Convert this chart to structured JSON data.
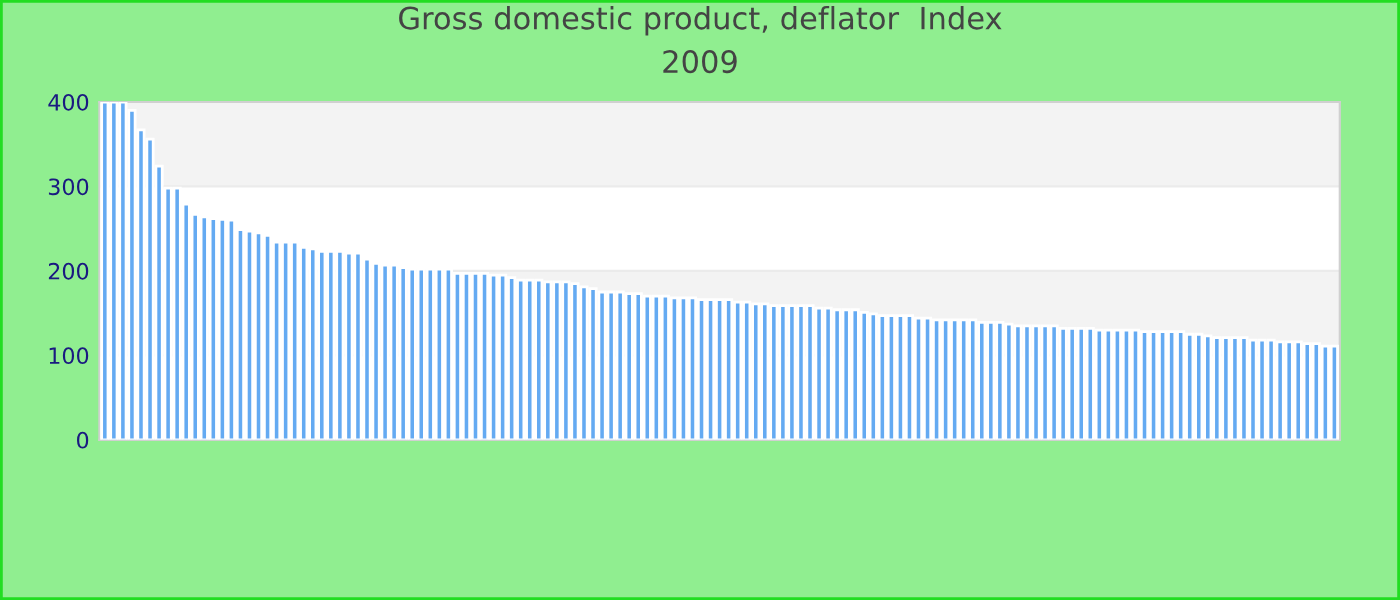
{
  "chart_data": {
    "type": "bar",
    "title": "Gross domestic product, deflator  Index\n2009",
    "categories": [
      null,
      null,
      null,
      null,
      null,
      null,
      null,
      null,
      null,
      null,
      null,
      null,
      null,
      null,
      null,
      null,
      null,
      null,
      null,
      null,
      null,
      null,
      null,
      null,
      null,
      null,
      null,
      null,
      null,
      null,
      null,
      null,
      null,
      null,
      null,
      null,
      null,
      null,
      null,
      null,
      null,
      null,
      null,
      null,
      null,
      null,
      null,
      null,
      null,
      null,
      null,
      null,
      null,
      null,
      null,
      null,
      null,
      null,
      null,
      null,
      null,
      null,
      null,
      null,
      null,
      null,
      null,
      null,
      null,
      null,
      null,
      null,
      null,
      null,
      null,
      null,
      null,
      null,
      null,
      null,
      null,
      null,
      null,
      null,
      null,
      null,
      null,
      null,
      null,
      null,
      null,
      null,
      null,
      null,
      null,
      null,
      null,
      null,
      null,
      null,
      null,
      null,
      null,
      null,
      null,
      null,
      null,
      null,
      null,
      null,
      null,
      null,
      null,
      null,
      null,
      null,
      null,
      null,
      null,
      null,
      null,
      null,
      null,
      null,
      null,
      null,
      null,
      null,
      null,
      null,
      null,
      null,
      null,
      null,
      null,
      null,
      null
    ],
    "values": [
      400,
      400,
      400,
      390,
      367,
      356,
      324,
      298,
      298,
      279,
      267,
      264,
      262,
      261,
      260,
      249,
      247,
      245,
      242,
      234,
      234,
      234,
      228,
      226,
      223,
      223,
      223,
      221,
      221,
      214,
      209,
      207,
      207,
      204,
      202,
      202,
      202,
      202,
      202,
      197,
      197,
      197,
      197,
      195,
      195,
      192,
      189,
      189,
      189,
      187,
      187,
      187,
      185,
      181,
      179,
      175,
      175,
      175,
      173,
      173,
      170,
      170,
      170,
      168,
      168,
      168,
      166,
      166,
      166,
      166,
      163,
      163,
      161,
      161,
      159,
      159,
      159,
      159,
      159,
      156,
      156,
      154,
      154,
      154,
      151,
      149,
      147,
      147,
      147,
      147,
      144,
      144,
      142,
      142,
      142,
      142,
      142,
      139,
      139,
      139,
      137,
      135,
      135,
      135,
      135,
      135,
      132,
      132,
      132,
      132,
      130,
      130,
      130,
      130,
      130,
      128,
      128,
      128,
      128,
      128,
      125,
      125,
      123,
      121,
      121,
      121,
      121,
      118,
      118,
      118,
      116,
      116,
      116,
      114,
      114,
      111,
      111
    ],
    "color": "#64aaf2",
    "ylim": [
      0,
      400
    ],
    "yticks": [
      0,
      100,
      200,
      300,
      400
    ],
    "grid": "y"
  }
}
